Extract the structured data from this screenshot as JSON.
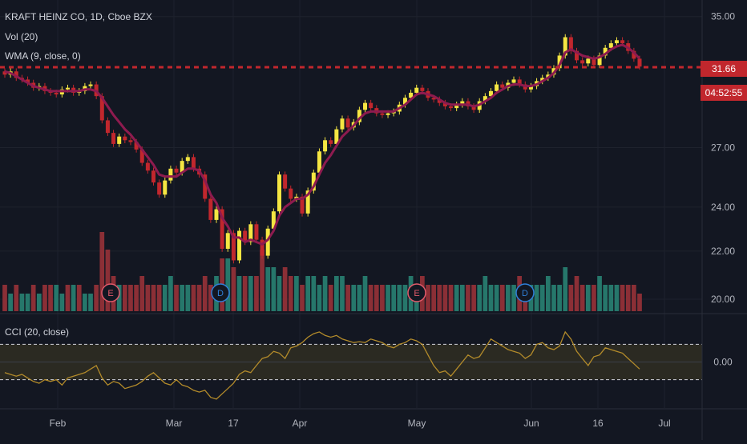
{
  "legend": {
    "symbol": "KRAFT HEINZ CO, 1D, Cboe BZX",
    "vol": "Vol (20)",
    "wma": "WMA (9, close, 0)",
    "cci": "CCI (20, close)"
  },
  "badges": {
    "last_price": "31.66",
    "countdown": "04:52:55"
  },
  "colors": {
    "background": "#131722",
    "grid": "#1e222d",
    "up_candle": "#f5e642",
    "down_candle": "#c1272d",
    "wma_line": "#8e1b4f",
    "vol_up": "#26776b",
    "vol_down": "#8b2f36",
    "cci_line": "#b38b2a",
    "axis_text": "#b2b5be",
    "price_line": "#c1272d"
  },
  "chart_data": [
    {
      "type": "candlestick",
      "title": "KRAFT HEINZ CO, 1D, Cboe BZX",
      "x_tick_labels": [
        "Feb",
        "Mar",
        "17",
        "Apr",
        "May",
        "Jun",
        "16",
        "Jul"
      ],
      "y_tick_labels": [
        "35.00",
        "31.66",
        "27.00",
        "24.00",
        "22.00",
        "20.00"
      ],
      "yscale": "log",
      "ylim": [
        19.5,
        35.6
      ],
      "horizontal_line": 31.66,
      "grid": true,
      "markers": [
        "E",
        "D",
        "E",
        "D"
      ],
      "close": [
        31.2,
        31.4,
        31.0,
        30.9,
        30.7,
        30.4,
        30.5,
        30.2,
        30.1,
        30.0,
        30.3,
        30.4,
        30.1,
        30.2,
        30.5,
        30.6,
        29.9,
        28.5,
        27.8,
        27.2,
        27.6,
        27.4,
        27.3,
        26.9,
        26.2,
        25.8,
        25.2,
        24.6,
        25.3,
        25.9,
        25.7,
        26.3,
        26.5,
        25.9,
        25.6,
        24.4,
        23.4,
        23.9,
        22.1,
        22.8,
        21.6,
        22.9,
        22.4,
        23.2,
        22.5,
        21.8,
        23.0,
        23.8,
        25.6,
        24.9,
        24.4,
        24.5,
        23.7,
        24.8,
        25.7,
        26.8,
        27.4,
        27.2,
        28.0,
        28.6,
        28.1,
        28.4,
        29.1,
        29.5,
        29.2,
        28.9,
        28.8,
        28.9,
        29.0,
        29.4,
        29.8,
        30.1,
        30.4,
        30.2,
        29.8,
        29.7,
        29.5,
        29.3,
        29.2,
        29.4,
        29.6,
        29.3,
        29.1,
        29.6,
        29.9,
        30.2,
        30.6,
        30.4,
        30.7,
        30.9,
        30.6,
        30.3,
        30.5,
        30.8,
        31.0,
        31.2,
        31.6,
        32.4,
        33.6,
        32.7,
        32.1,
        31.9,
        32.2,
        31.8,
        32.4,
        32.9,
        33.2,
        33.4,
        33.2,
        32.7,
        32.2,
        31.7
      ]
    },
    {
      "type": "line",
      "name": "WMA (9, close, 0)",
      "values": [
        31.4,
        31.3,
        31.1,
        30.9,
        30.7,
        30.5,
        30.4,
        30.3,
        30.2,
        30.2,
        30.2,
        30.2,
        30.2,
        30.2,
        30.3,
        30.3,
        30.2,
        29.8,
        29.3,
        28.8,
        28.4,
        28.0,
        27.7,
        27.3,
        26.9,
        26.5,
        26.1,
        25.6,
        25.5,
        25.5,
        25.5,
        25.7,
        25.9,
        25.9,
        25.8,
        25.3,
        24.6,
        24.2,
        23.5,
        23.1,
        22.6,
        22.6,
        22.4,
        22.5,
        22.4,
        22.3,
        22.5,
        22.9,
        23.6,
        24.0,
        24.2,
        24.4,
        24.4,
        24.6,
        25.0,
        25.6,
        26.2,
        26.6,
        27.1,
        27.6,
        27.9,
        28.2,
        28.6,
        28.9,
        29.0,
        29.0,
        29.0,
        29.0,
        29.0,
        29.2,
        29.4,
        29.7,
        30.0,
        30.1,
        30.0,
        29.9,
        29.7,
        29.5,
        29.4,
        29.4,
        29.4,
        29.4,
        29.3,
        29.4,
        29.6,
        29.8,
        30.1,
        30.3,
        30.5,
        30.6,
        30.6,
        30.5,
        30.5,
        30.6,
        30.8,
        31.0,
        31.3,
        31.8,
        32.6,
        32.8,
        32.6,
        32.4,
        32.3,
        32.2,
        32.3,
        32.5,
        32.8,
        33.0,
        33.1,
        32.9,
        32.6,
        32.2
      ]
    },
    {
      "type": "bar",
      "name": "Vol (20)",
      "values": [
        3,
        2,
        3,
        2,
        2,
        3,
        2,
        3,
        3,
        3,
        2,
        3,
        3,
        3,
        2,
        2,
        3,
        9,
        7,
        4,
        3,
        3,
        3,
        3,
        4,
        3,
        3,
        3,
        3,
        4,
        3,
        3,
        3,
        3,
        3,
        4,
        3,
        4,
        6,
        6,
        5,
        4,
        4,
        4,
        4,
        7,
        5,
        5,
        4,
        5,
        4,
        4,
        3,
        4,
        4,
        3,
        4,
        3,
        4,
        4,
        3,
        3,
        3,
        4,
        3,
        3,
        3,
        3,
        3,
        3,
        3,
        4,
        3,
        4,
        3,
        3,
        3,
        3,
        3,
        3,
        3,
        3,
        3,
        3,
        4,
        3,
        3,
        3,
        3,
        3,
        4,
        3,
        3,
        3,
        3,
        4,
        3,
        3,
        5,
        3,
        4,
        3,
        3,
        3,
        4,
        3,
        3,
        3,
        3,
        3,
        3,
        2
      ],
      "up": [
        false,
        true,
        false,
        true,
        true,
        false,
        true,
        false,
        false,
        true,
        true,
        false,
        true,
        false,
        true,
        true,
        false,
        false,
        false,
        false,
        true,
        false,
        false,
        false,
        false,
        false,
        false,
        false,
        true,
        true,
        false,
        true,
        true,
        false,
        false,
        false,
        false,
        true,
        false,
        true,
        false,
        true,
        false,
        true,
        false,
        false,
        true,
        true,
        true,
        false,
        false,
        true,
        false,
        true,
        true,
        true,
        true,
        false,
        true,
        true,
        false,
        true,
        true,
        true,
        false,
        false,
        false,
        true,
        true,
        true,
        true,
        true,
        true,
        false,
        false,
        false,
        false,
        false,
        false,
        true,
        true,
        false,
        false,
        true,
        true,
        true,
        true,
        false,
        true,
        true,
        false,
        false,
        true,
        true,
        true,
        true,
        true,
        true,
        true,
        false,
        false,
        false,
        true,
        false,
        true,
        true,
        true,
        true,
        false,
        false,
        false,
        false
      ],
      "markers": [
        "E",
        "D",
        "E",
        "D"
      ]
    },
    {
      "type": "line",
      "name": "CCI (20, close)",
      "y_tick_labels": [
        "0.00"
      ],
      "bands": [
        100,
        -100
      ],
      "values": [
        -60,
        -70,
        -80,
        -70,
        -90,
        -110,
        -120,
        -100,
        -110,
        -100,
        -130,
        -90,
        -80,
        -70,
        -60,
        -40,
        -20,
        -90,
        -130,
        -110,
        -120,
        -150,
        -140,
        -130,
        -110,
        -80,
        -60,
        -90,
        -120,
        -130,
        -100,
        -130,
        -140,
        -160,
        -170,
        -160,
        -200,
        -210,
        -180,
        -150,
        -120,
        -70,
        -50,
        -60,
        -20,
        20,
        30,
        60,
        50,
        20,
        80,
        90,
        110,
        140,
        160,
        170,
        150,
        140,
        150,
        130,
        120,
        110,
        115,
        110,
        130,
        120,
        110,
        90,
        80,
        100,
        110,
        130,
        120,
        100,
        40,
        -20,
        -60,
        -50,
        -80,
        -40,
        0,
        40,
        20,
        30,
        80,
        130,
        110,
        90,
        70,
        60,
        50,
        20,
        40,
        100,
        110,
        80,
        70,
        90,
        170,
        130,
        60,
        20,
        -20,
        30,
        40,
        80,
        70,
        60,
        50,
        20,
        -10,
        -40
      ]
    }
  ]
}
